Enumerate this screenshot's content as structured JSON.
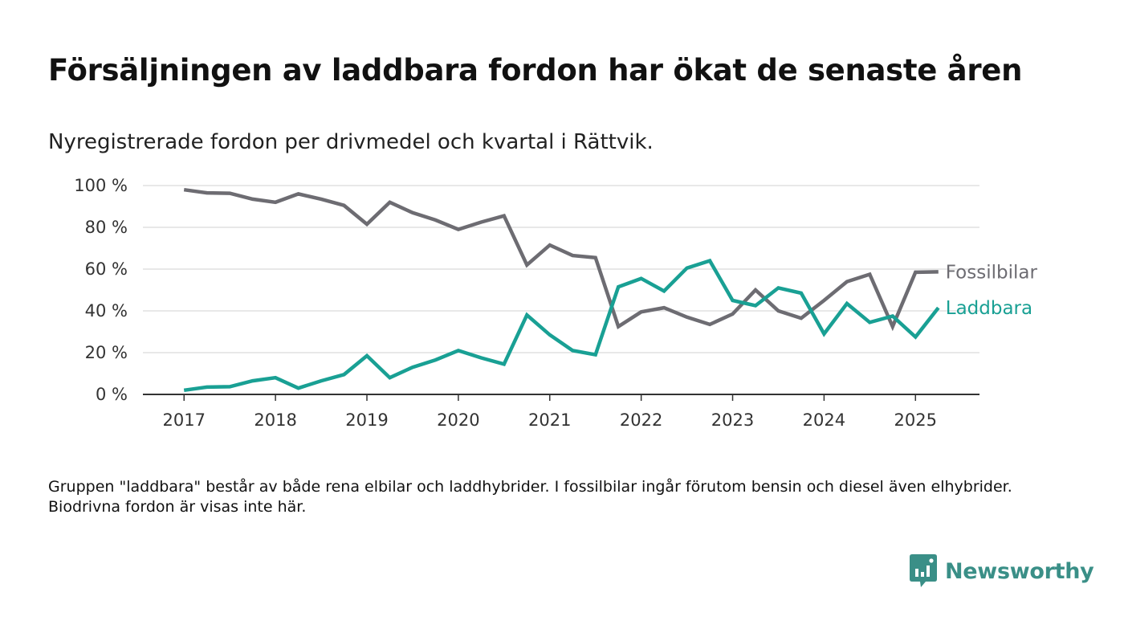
{
  "title": "Försäljningen av laddbara fordon har ökat de senaste åren",
  "subtitle": "Nyregistrerade fordon per drivmedel och kvartal i Rättvik.",
  "note": "Gruppen \"laddbara\" består av både rena elbilar och laddhybrider. I fossilbilar ingår förutom bensin och diesel även elhybrider. Biodrivna fordon är visas inte här.",
  "brand": {
    "name": "Newsworthy",
    "icon": "newsworthy-logo-icon",
    "color": "#3a8f87"
  },
  "chart_data": {
    "type": "line",
    "x": [
      2017,
      2017.25,
      2017.5,
      2017.75,
      2018,
      2018.25,
      2018.5,
      2018.75,
      2019,
      2019.25,
      2019.5,
      2019.75,
      2020,
      2020.25,
      2020.5,
      2020.75,
      2021,
      2021.25,
      2021.5,
      2021.75,
      2022,
      2022.25,
      2022.5,
      2022.75,
      2023,
      2023.25,
      2023.5,
      2023.75,
      2024,
      2024.25,
      2024.5,
      2024.75,
      2025,
      2025.25
    ],
    "x_ticks": [
      2017,
      2018,
      2019,
      2020,
      2021,
      2022,
      2023,
      2024,
      2025
    ],
    "xlim": [
      2016.55,
      2025.7
    ],
    "y_ticks": [
      0,
      20,
      40,
      60,
      80,
      100
    ],
    "y_tick_labels": [
      "0 %",
      "20 %",
      "40 %",
      "60 %",
      "80 %",
      "100 %"
    ],
    "ylim": [
      0,
      100
    ],
    "grid": true,
    "legend": "end-of-line labels",
    "series": [
      {
        "name": "Fossilbilar",
        "color": "#6d6c72",
        "values": [
          98,
          96.5,
          96.3,
          93.5,
          92,
          96,
          93.5,
          90.5,
          81.5,
          92,
          87,
          83.5,
          79,
          82.5,
          85.5,
          62,
          71.5,
          66.5,
          65.5,
          32.5,
          39.5,
          41.5,
          37,
          33.5,
          38.5,
          50,
          40,
          36.5,
          45,
          54,
          57.5,
          32.5,
          58.5,
          58.7
        ]
      },
      {
        "name": "Laddbara",
        "color": "#19a094",
        "values": [
          2,
          3.5,
          3.7,
          6.5,
          8,
          3,
          6.5,
          9.5,
          18.5,
          8,
          13,
          16.5,
          21,
          17.5,
          14.5,
          38,
          28.5,
          21,
          19,
          51.5,
          55.5,
          49.5,
          60.5,
          64,
          45,
          42.5,
          51,
          48.5,
          29,
          43.5,
          34.5,
          37.5,
          27.5,
          41.5
        ]
      }
    ]
  }
}
